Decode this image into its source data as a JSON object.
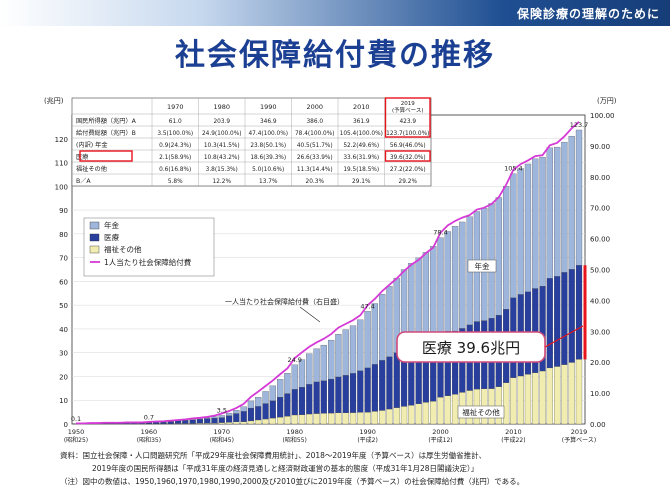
{
  "header": {
    "banner": "保険診療の理解のために",
    "title": "社会保障給付費の推移"
  },
  "table": {
    "columns": [
      "1970",
      "1980",
      "1990",
      "2000",
      "2010",
      "2019\n(予算ベース)"
    ],
    "rows": [
      {
        "label": "国民所得額（兆円）A",
        "values": [
          "61.0",
          "203.9",
          "346.9",
          "386.0",
          "361.9",
          "423.9"
        ]
      },
      {
        "label": "給付費総額（兆円）B",
        "values": [
          "3.5(100.0%)",
          "24.9(100.0%)",
          "47.4(100.0%)",
          "78.4(100.0%)",
          "105.4(100.0%)",
          "123.7(100.0%)"
        ]
      },
      {
        "label": "(内訳) 年金",
        "values": [
          "0.9(24.3%)",
          "10.3(41.5%)",
          "23.8(50.1%)",
          "40.5(51.7%)",
          "52.2(49.6%)",
          "56.9(46.0%)"
        ]
      },
      {
        "label": "医療",
        "values": [
          "2.1(58.9%)",
          "10.8(43.2%)",
          "18.6(39.3%)",
          "26.6(33.9%)",
          "33.6(31.9%)",
          "39.6(32.0%)"
        ]
      },
      {
        "label": "福祉その他",
        "values": [
          "0.6(16.8%)",
          "3.8(15.3%)",
          "5.0(10.6%)",
          "11.3(14.4%)",
          "19.5(18.5%)",
          "27.2(22.0%)"
        ]
      },
      {
        "label": "B／A",
        "values": [
          "5.8%",
          "12.2%",
          "13.7%",
          "20.3%",
          "29.1%",
          "29.2%"
        ]
      }
    ]
  },
  "chart_data": {
    "type": "bar",
    "stacked": true,
    "ylabel_left": "(兆円)",
    "ylabel_right": "(万円)",
    "ylim_left": [
      0,
      130
    ],
    "ylim_right": [
      0,
      100
    ],
    "yticks_left": [
      "0",
      "10",
      "20",
      "30",
      "40",
      "50",
      "60",
      "70",
      "80",
      "90",
      "100",
      "110",
      "120"
    ],
    "yticks_right": [
      "0.00",
      "10.00",
      "20.00",
      "30.00",
      "40.00",
      "50.00",
      "60.00",
      "70.00",
      "80.00",
      "90.00",
      "100.00"
    ],
    "x_ticks": [
      {
        "year": 1950,
        "label": "1950",
        "sub": "(昭和25)"
      },
      {
        "year": 1960,
        "label": "1960",
        "sub": "(昭和35)"
      },
      {
        "year": 1970,
        "label": "1970",
        "sub": "(昭和45)"
      },
      {
        "year": 1980,
        "label": "1980",
        "sub": "(昭和55)"
      },
      {
        "year": 1990,
        "label": "1990",
        "sub": "(平成2)"
      },
      {
        "year": 2000,
        "label": "2000",
        "sub": "(平成12)"
      },
      {
        "year": 2010,
        "label": "2010",
        "sub": "(平成22)"
      },
      {
        "year": 2019,
        "label": "2019",
        "sub": "(予算ベース)"
      }
    ],
    "years": [
      1950,
      1951,
      1952,
      1953,
      1954,
      1955,
      1956,
      1957,
      1958,
      1959,
      1960,
      1961,
      1962,
      1963,
      1964,
      1965,
      1966,
      1967,
      1968,
      1969,
      1970,
      1971,
      1972,
      1973,
      1974,
      1975,
      1976,
      1977,
      1978,
      1979,
      1980,
      1981,
      1982,
      1983,
      1984,
      1985,
      1986,
      1987,
      1988,
      1989,
      1990,
      1991,
      1992,
      1993,
      1994,
      1995,
      1996,
      1997,
      1998,
      1999,
      2000,
      2001,
      2002,
      2003,
      2004,
      2005,
      2006,
      2007,
      2008,
      2009,
      2010,
      2011,
      2012,
      2013,
      2014,
      2015,
      2016,
      2017,
      2018,
      2019
    ],
    "series": [
      {
        "name": "年金",
        "color": "#9fb6dc",
        "values": [
          0.0,
          0.0,
          0.0,
          0.0,
          0.0,
          0.0,
          0.0,
          0.1,
          0.1,
          0.1,
          0.1,
          0.1,
          0.1,
          0.2,
          0.2,
          0.2,
          0.3,
          0.3,
          0.4,
          0.6,
          0.9,
          1.1,
          1.4,
          2.0,
          3.0,
          3.9,
          5.1,
          6.3,
          7.5,
          8.6,
          10.3,
          11.6,
          12.9,
          14.0,
          15.0,
          16.4,
          18.0,
          19.2,
          20.1,
          21.5,
          23.8,
          25.6,
          27.8,
          29.6,
          31.4,
          33.5,
          34.7,
          36.3,
          37.9,
          39.2,
          40.5,
          42.0,
          44.1,
          44.8,
          45.5,
          46.3,
          47.3,
          48.3,
          49.5,
          51.7,
          52.2,
          53.0,
          53.8,
          54.6,
          54.3,
          54.9,
          54.4,
          54.8,
          56.0,
          56.9
        ]
      },
      {
        "name": "医療",
        "color": "#283f9e",
        "values": [
          0.1,
          0.1,
          0.1,
          0.2,
          0.2,
          0.2,
          0.3,
          0.3,
          0.3,
          0.4,
          0.5,
          0.6,
          0.7,
          0.9,
          1.1,
          1.3,
          1.5,
          1.7,
          2.0,
          2.2,
          2.1,
          2.8,
          3.5,
          4.3,
          5.4,
          5.7,
          6.5,
          7.3,
          8.4,
          9.5,
          10.8,
          11.6,
          12.5,
          13.3,
          13.7,
          14.3,
          15.1,
          15.8,
          16.5,
          17.5,
          18.6,
          19.8,
          21.1,
          22.0,
          23.1,
          24.1,
          25.0,
          25.1,
          25.2,
          26.0,
          26.6,
          27.1,
          26.6,
          26.9,
          27.6,
          28.4,
          28.7,
          29.6,
          30.1,
          30.9,
          33.6,
          34.3,
          34.7,
          35.4,
          35.7,
          37.7,
          37.9,
          38.8,
          39.2,
          39.6
        ]
      },
      {
        "name": "福祉その他",
        "color": "#f1ecb0",
        "values": [
          0.0,
          0.0,
          0.0,
          0.0,
          0.0,
          0.0,
          0.0,
          0.0,
          0.0,
          0.0,
          0.1,
          0.1,
          0.1,
          0.1,
          0.2,
          0.2,
          0.2,
          0.3,
          0.3,
          0.3,
          0.6,
          0.7,
          0.9,
          1.0,
          1.3,
          1.7,
          2.1,
          2.5,
          2.9,
          3.3,
          3.8,
          3.9,
          4.2,
          4.4,
          4.5,
          4.6,
          4.7,
          4.7,
          4.8,
          4.9,
          5.0,
          5.3,
          5.7,
          6.3,
          6.9,
          7.4,
          7.9,
          8.5,
          9.1,
          9.6,
          11.3,
          11.9,
          12.5,
          13.3,
          14.1,
          14.7,
          14.8,
          14.9,
          15.7,
          17.4,
          19.5,
          20.2,
          20.9,
          21.6,
          22.3,
          23.6,
          24.2,
          25.0,
          25.9,
          27.2
        ]
      }
    ],
    "line": {
      "name": "1人当たり社会保障給付費",
      "color": "#d63ad6",
      "values": [
        0.2,
        0.2,
        0.3,
        0.3,
        0.4,
        0.4,
        0.4,
        0.5,
        0.5,
        0.5,
        0.7,
        0.8,
        0.9,
        1.1,
        1.3,
        1.5,
        1.8,
        2.0,
        2.3,
        2.7,
        3.4,
        4.2,
        5.2,
        6.5,
        8.8,
        10.5,
        12.3,
        14.1,
        16.1,
        18.0,
        21.3,
        23.2,
        25.0,
        26.4,
        27.6,
        29.1,
        31.2,
        32.4,
        33.6,
        35.2,
        38.4,
        40.5,
        43.0,
        45.1,
        47.1,
        49.5,
        51.6,
        53.1,
        55.3,
        57.1,
        61.9,
        64.3,
        65.7,
        66.8,
        67.6,
        69.4,
        70.0,
        71.2,
        73.4,
        77.4,
        82.3,
        84.1,
        85.3,
        86.7,
        87.0,
        90.2,
        91.0,
        93.1,
        95.7,
        97.8
      ]
    },
    "value_labels": [
      {
        "year": 1950,
        "text": "0.1"
      },
      {
        "year": 1960,
        "text": "0.7"
      },
      {
        "year": 1970,
        "text": "3.5"
      },
      {
        "year": 1980,
        "text": "24.9"
      },
      {
        "year": 1990,
        "text": "47.4"
      },
      {
        "year": 2000,
        "text": "78.4"
      },
      {
        "year": 2010,
        "text": "105.4"
      },
      {
        "year": 2019,
        "text": "123.7"
      }
    ],
    "legend": {
      "placement": "left",
      "items": [
        "年金",
        "医療",
        "福祉その他",
        "1人当たり社会保障給付費"
      ]
    },
    "annotations": {
      "line_label": "一人当たり社会保障給付費（右目盛）",
      "pension": "年金",
      "welfare": "福祉その他",
      "callout": "医療 39.6兆円"
    }
  },
  "notes": [
    "資料：国立社会保障・人口問題研究所「平成29年度社会保障費用統計」、2018～2019年度（予算ベース）は厚生労働省推計、",
    "2019年度の国民所得額は「平成31年度の経済見通しと経済財政運営の基本的態度（平成31年1月28日閣議決定）」",
    "（注）図中の数値は、1950,1960,1970,1980,1990,2000及び2010並びに2019年度（予算ベース）の社会保障給付費（兆円）である。"
  ],
  "colors": {
    "highlight": "#e8141c",
    "title": "#1b3f92",
    "callout_border": "#d24a7a"
  }
}
